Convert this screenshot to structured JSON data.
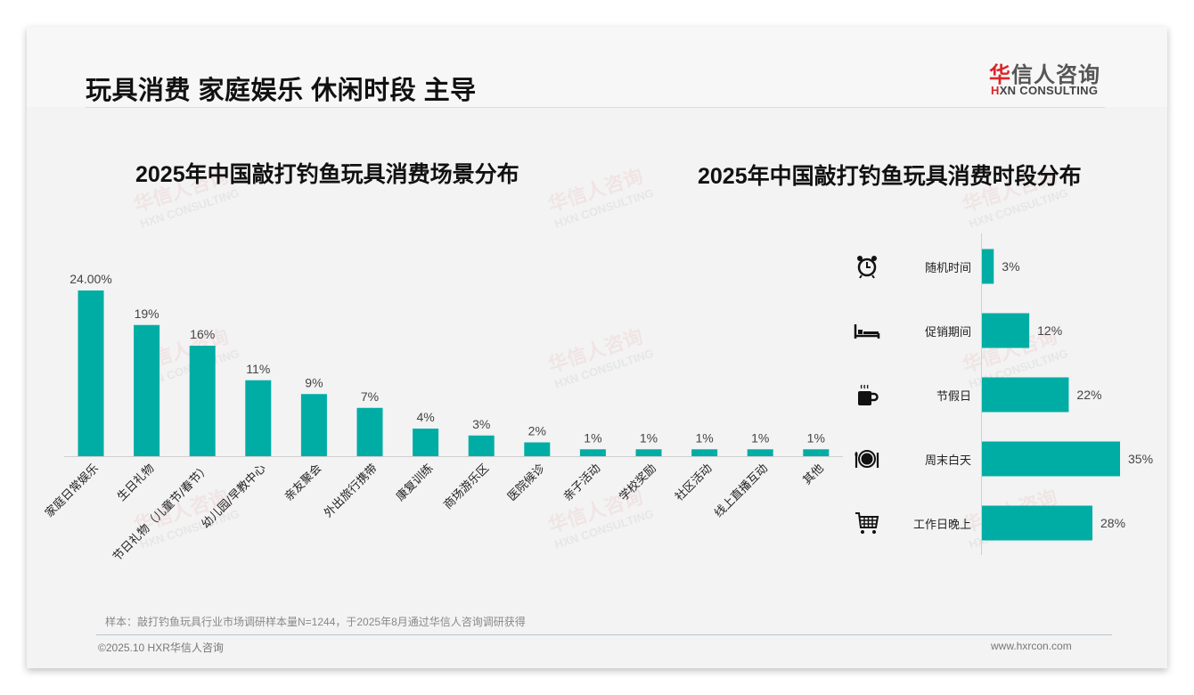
{
  "page": {
    "title": "玩具消费 家庭娱乐 休闲时段 主导",
    "logo": {
      "cn_red": "华",
      "cn_rest": "信人咨询",
      "en_red": "H",
      "en_rest": "XN CONSULTING"
    },
    "watermark": {
      "cn": "华信人咨询",
      "en": "HXN CONSULTING"
    },
    "note": "样本：敲打钓鱼玩具行业市场调研样本量N=1244，于2025年8月通过华信人咨询调研获得",
    "copyright": "©2025.10 HXR华信人咨询",
    "url": "www.hxrcon.com",
    "colors": {
      "bar": "#00ada4",
      "axis": "#d0d0d0",
      "text": "#333333"
    }
  },
  "chart_data": [
    {
      "type": "bar",
      "title": "2025年中国敲打钓鱼玩具消费场景分布",
      "categories": [
        "家庭日常娱乐",
        "生日礼物",
        "节日礼物（儿童节/春节）",
        "幼儿园/早教中心",
        "亲友聚会",
        "外出旅行携带",
        "康复训练",
        "商场游乐区",
        "医院候诊",
        "亲子活动",
        "学校奖励",
        "社区活动",
        "线上直播互动",
        "其他"
      ],
      "values": [
        24,
        19,
        16,
        11,
        9,
        7,
        4,
        3,
        2,
        1,
        1,
        1,
        1,
        1
      ],
      "labels": [
        "24.00%",
        "19%",
        "16%",
        "11%",
        "9%",
        "7%",
        "4%",
        "3%",
        "2%",
        "1%",
        "1%",
        "1%",
        "1%",
        "1%"
      ],
      "xlabel": "",
      "ylabel": "",
      "ylim": [
        0,
        24
      ],
      "grid": false
    },
    {
      "type": "bar",
      "orientation": "horizontal",
      "title": "2025年中国敲打钓鱼玩具消费时段分布",
      "categories": [
        "随机时间",
        "促销期间",
        "节假日",
        "周末白天",
        "工作日晚上"
      ],
      "icons": [
        "alarm-clock-icon",
        "bed-icon",
        "coffee-mug-icon",
        "plate-cutlery-icon",
        "shopping-cart-icon"
      ],
      "values": [
        3,
        12,
        22,
        35,
        28
      ],
      "labels": [
        "3%",
        "12%",
        "22%",
        "35%",
        "28%"
      ],
      "xlim": [
        0,
        35
      ],
      "grid": false
    }
  ]
}
